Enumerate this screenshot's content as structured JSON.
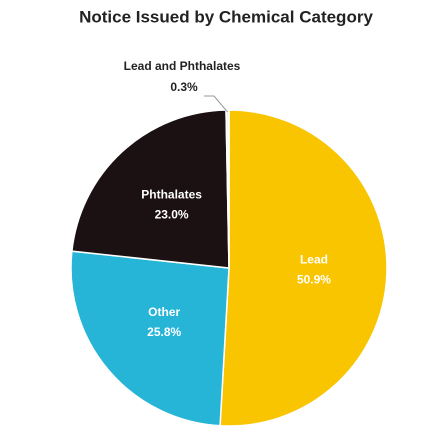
{
  "chart_data": {
    "type": "pie",
    "title": "Notice Issued by Chemical Category",
    "categories": [
      "Lead",
      "Other",
      "Phthalates",
      "Lead and Phthalates"
    ],
    "values": [
      50.9,
      25.8,
      23.0,
      0.3
    ],
    "value_labels": [
      "50.9%",
      "25.8%",
      "23.0%",
      "0.3%"
    ],
    "colors": [
      "#f9c400",
      "#26b4d7",
      "#1b1012",
      "#f4f4f4"
    ]
  }
}
